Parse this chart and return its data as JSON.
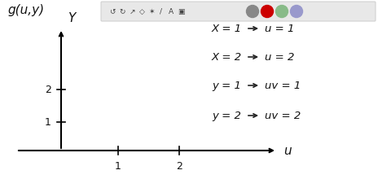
{
  "background_color": "#ffffff",
  "toolbar_bg": "#e8e8e8",
  "toolbar_border": "#cccccc",
  "title_text": "g(u,y)",
  "axis_label_x": "u",
  "axis_label_y": "Y",
  "x_ticks": [
    1,
    2
  ],
  "y_ticks": [
    1,
    2
  ],
  "circle_colors": [
    "#888888",
    "#cc0000",
    "#88bb88",
    "#9999cc"
  ],
  "font_size_eq": 9.5,
  "font_size_axis": 11,
  "font_size_title": 11,
  "font_size_tick": 9,
  "eq_lines": [
    [
      "X = 1",
      "u = 1"
    ],
    [
      "X = 2",
      "u = 2"
    ],
    [
      "y = 1",
      "uv = 1"
    ],
    [
      "y = 2",
      "uv = 2"
    ]
  ]
}
